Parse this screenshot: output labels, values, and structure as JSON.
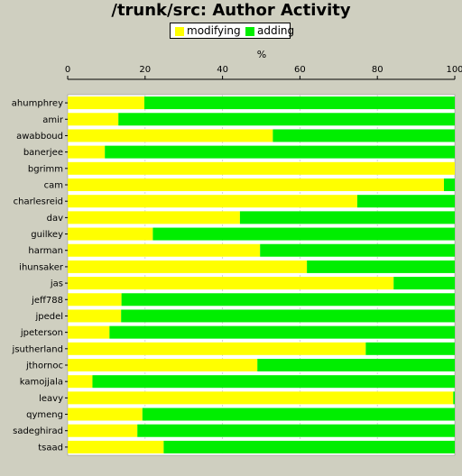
{
  "chart_data": {
    "type": "bar",
    "orientation": "horizontal",
    "stacked": true,
    "title": "/trunk/src: Author Activity",
    "xlabel": "%",
    "xlim": [
      0,
      100
    ],
    "xticks": [
      "0",
      "20",
      "40",
      "60",
      "80",
      "100"
    ],
    "legend_position": "top",
    "categories": [
      "ahumphrey",
      "amir",
      "awabboud",
      "banerjee",
      "bgrimm",
      "cam",
      "charlesreid",
      "dav",
      "guilkey",
      "harman",
      "ihunsaker",
      "jas",
      "jeff788",
      "jpedel",
      "jpeterson",
      "jsutherland",
      "jthornoc",
      "kamojjala",
      "leavy",
      "qymeng",
      "sadeghirad",
      "tsaad"
    ],
    "series": [
      {
        "name": "modifying",
        "color": "#ffff00",
        "values": [
          19.8,
          13.1,
          53.0,
          9.6,
          100.0,
          97.2,
          74.8,
          44.5,
          22.0,
          49.7,
          61.8,
          84.2,
          13.9,
          13.8,
          10.8,
          77.0,
          49.0,
          6.4,
          99.6,
          19.3,
          18.0,
          24.8
        ]
      },
      {
        "name": "adding",
        "color": "#00ee00",
        "values": [
          80.2,
          86.9,
          47.0,
          90.4,
          0.0,
          2.8,
          25.2,
          55.5,
          78.0,
          50.3,
          38.2,
          15.8,
          86.1,
          86.2,
          89.2,
          23.0,
          51.0,
          93.6,
          0.4,
          80.7,
          82.0,
          75.2
        ]
      }
    ]
  }
}
